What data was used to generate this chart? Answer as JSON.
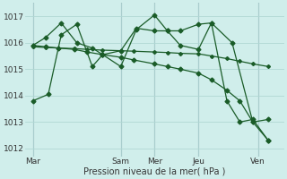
{
  "bg_color": "#d0eeeb",
  "grid_color": "#b0d8d4",
  "line_color": "#1a5c28",
  "xlabel": "Pression niveau de la mer( hPa )",
  "ylim": [
    1011.7,
    1017.5
  ],
  "yticks": [
    1012,
    1013,
    1014,
    1015,
    1016,
    1017
  ],
  "xlim": [
    0,
    100
  ],
  "xtick_labels": [
    "Mar",
    "Sam",
    "Mer",
    "Jeu",
    "Ven"
  ],
  "xtick_positions": [
    3,
    37,
    50,
    67,
    90
  ],
  "vlines": [
    3,
    37,
    50,
    67,
    90
  ],
  "grid_x_step": 6.5,
  "series": [
    {
      "x": [
        3,
        8,
        13,
        19,
        24,
        30,
        37,
        42,
        50,
        55,
        60,
        67,
        72,
        78,
        83,
        88,
        94
      ],
      "y": [
        1015.9,
        1015.85,
        1015.8,
        1015.75,
        1015.65,
        1015.55,
        1015.45,
        1015.35,
        1015.2,
        1015.1,
        1015.0,
        1014.85,
        1014.6,
        1014.2,
        1013.8,
        1013.0,
        1012.3
      ],
      "marker": "D",
      "ms": 2.5
    },
    {
      "x": [
        3,
        8,
        13,
        19,
        24,
        30,
        37,
        42,
        50,
        55,
        60,
        67,
        72,
        78,
        83,
        88,
        94
      ],
      "y": [
        1015.85,
        1015.82,
        1015.8,
        1015.78,
        1015.75,
        1015.72,
        1015.7,
        1015.68,
        1015.65,
        1015.63,
        1015.6,
        1015.58,
        1015.5,
        1015.4,
        1015.3,
        1015.2,
        1015.1
      ],
      "marker": "D",
      "ms": 2.0
    },
    {
      "x": [
        3,
        8,
        14,
        20,
        26,
        30,
        37,
        43,
        50,
        55,
        60,
        67,
        72,
        80,
        88,
        94
      ],
      "y": [
        1015.9,
        1016.2,
        1016.75,
        1016.0,
        1015.8,
        1015.55,
        1015.7,
        1016.55,
        1016.45,
        1016.45,
        1015.9,
        1015.75,
        1016.75,
        1016.0,
        1013.0,
        1013.1
      ],
      "marker": "D",
      "ms": 2.5
    },
    {
      "x": [
        3,
        9,
        14,
        20,
        26,
        30,
        37,
        43,
        50,
        55,
        60,
        67,
        72,
        78,
        83,
        88,
        94
      ],
      "y": [
        1013.8,
        1014.05,
        1016.3,
        1016.7,
        1015.1,
        1015.55,
        1015.1,
        1016.5,
        1017.05,
        1016.45,
        1016.45,
        1016.7,
        1016.75,
        1013.8,
        1013.0,
        1013.1,
        1012.3
      ],
      "marker": "D",
      "ms": 2.5
    }
  ]
}
